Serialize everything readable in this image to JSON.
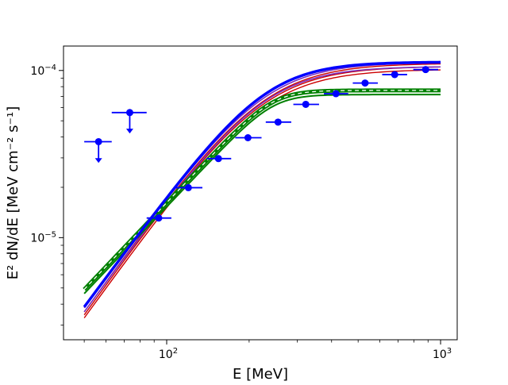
{
  "chart_data": {
    "type": "scatter",
    "title": "",
    "xlabel": "E [MeV]",
    "ylabel": "E² dN/dE [MeV cm⁻² s⁻¹]",
    "xscale": "log",
    "yscale": "log",
    "xlim": [
      42,
      1150
    ],
    "ylim": [
      2.45e-06,
      0.00014
    ],
    "grid": false,
    "x_tick_labels": [
      {
        "value": 100,
        "mantissa": "10",
        "exp": "2"
      },
      {
        "value": 1000,
        "mantissa": "10",
        "exp": "3"
      }
    ],
    "y_tick_labels": [
      {
        "value": 1e-05,
        "mantissa": "10",
        "exp": "−5"
      },
      {
        "value": 0.0001,
        "mantissa": "10",
        "exp": "−4"
      }
    ],
    "colors": {
      "points": "#0000ff",
      "blue_model": "#0000ff",
      "green_model": "#008000",
      "red_model": "#cc0000",
      "purple_model": "#7b2fbe"
    },
    "upper_limits": [
      {
        "x": 56.4,
        "xlo": 50.0,
        "xhi": 63.0,
        "y": 3.75e-05,
        "arrow_to": 2.8e-05
      },
      {
        "x": 73.3,
        "xlo": 63.0,
        "xhi": 84.5,
        "y": 5.6e-05,
        "arrow_to": 4.2e-05
      }
    ],
    "points": [
      {
        "x": 93.5,
        "xlo": 84.5,
        "xhi": 104.0,
        "y": 1.31e-05
      },
      {
        "x": 120.0,
        "xlo": 108.0,
        "xhi": 135.0,
        "y": 1.99e-05
      },
      {
        "x": 154.5,
        "xlo": 140.0,
        "xhi": 172.0,
        "y": 2.97e-05
      },
      {
        "x": 198.0,
        "xlo": 178.0,
        "xhi": 222.0,
        "y": 3.96e-05
      },
      {
        "x": 255.0,
        "xlo": 230.0,
        "xhi": 285.0,
        "y": 4.91e-05
      },
      {
        "x": 322.0,
        "xlo": 290.0,
        "xhi": 360.0,
        "y": 6.27e-05
      },
      {
        "x": 415.0,
        "xlo": 375.0,
        "xhi": 460.0,
        "y": 7.26e-05
      },
      {
        "x": 530.0,
        "xlo": 478.0,
        "xhi": 590.0,
        "y": 8.41e-05
      },
      {
        "x": 680.0,
        "xlo": 612.0,
        "xhi": 755.0,
        "y": 9.45e-05
      },
      {
        "x": 882.0,
        "xlo": 795.0,
        "xhi": 980.0,
        "y": 0.0001012
      }
    ],
    "models": {
      "blue": {
        "type": "smooth-broken-power-law",
        "y_at_50": 3.85e-06,
        "y_at_1000": 0.000112,
        "break": 230,
        "bend": 3.5
      },
      "green": {
        "type": "smooth-broken-power-law",
        "y_at_50": 4.9e-06,
        "y_at_1000": 7.6e-05,
        "break": 245,
        "bend": 7.5
      },
      "red": {
        "type": "smooth-broken-power-law",
        "y_at_50": 3.45e-06,
        "y_at_1000": 0.000105,
        "break": 225,
        "bend": 3.0
      },
      "purple": {
        "type": "smooth-broken-power-law",
        "y_at_50": 3.7e-06,
        "y_at_1000": 0.000108,
        "break": 228,
        "bend": 3.2
      }
    }
  }
}
